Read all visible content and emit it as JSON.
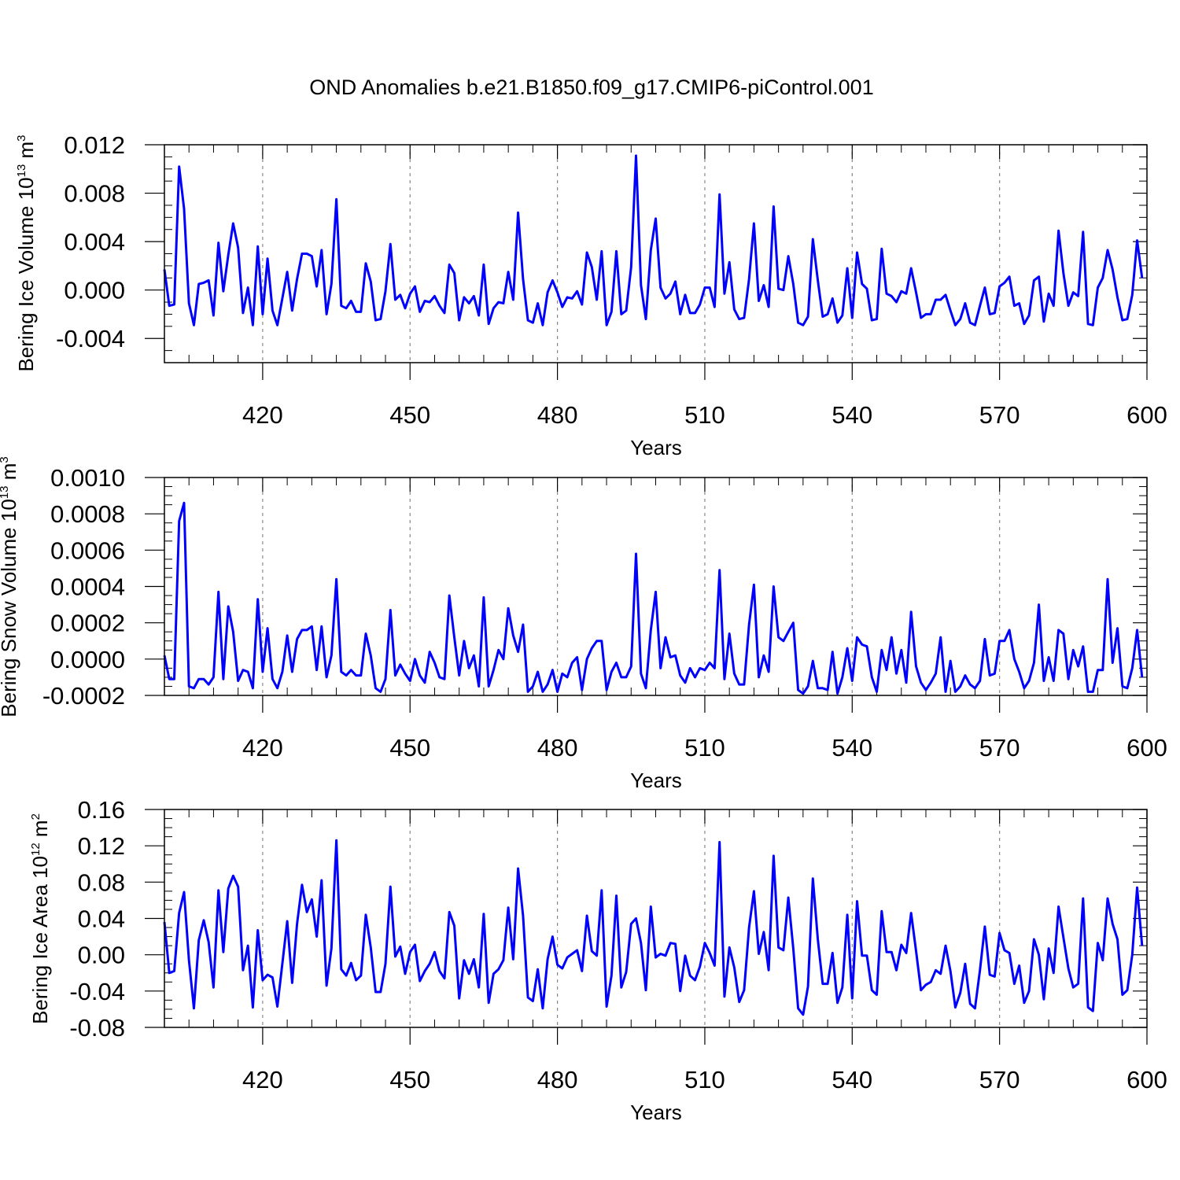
{
  "figure": {
    "title": "OND Anomalies b.e21.B1850.f09_g17.CMIP6-piControl.001",
    "line_color": "#0000ff",
    "grid_color": "#888888"
  },
  "chart_data": [
    {
      "type": "line",
      "name": "bering-ice-volume",
      "title": "",
      "xlabel": "Years",
      "ylabel": {
        "text": "Bering Ice Volume 10",
        "exp": "13",
        "unit": " m",
        "unit_exp": "3"
      },
      "xlim": [
        400,
        600
      ],
      "ylim": [
        -0.006,
        0.012
      ],
      "xticks": [
        420,
        450,
        480,
        510,
        540,
        570,
        600
      ],
      "yticks": [
        -0.004,
        0.0,
        0.004,
        0.008,
        0.012
      ],
      "ytick_labels": [
        "-0.004",
        "0.000",
        "0.004",
        "0.008",
        "0.012"
      ],
      "minor_yticks": [
        -0.005,
        -0.003,
        -0.002,
        -0.001,
        0.001,
        0.002,
        0.003,
        0.005,
        0.006,
        0.007,
        0.009,
        0.01,
        0.011
      ],
      "vgrid": [
        420,
        450,
        480,
        510,
        540,
        570
      ],
      "x_start": 400,
      "series": [
        {
          "name": "Bering Ice Volume",
          "values": [
            0.0017,
            -0.0013,
            -0.0012,
            0.0102,
            0.0067,
            -0.0011,
            -0.0029,
            0.0005,
            0.0006,
            0.0008,
            -0.0021,
            0.0039,
            -0.0001,
            0.0029,
            0.0055,
            0.0035,
            -0.0019,
            0.0002,
            -0.0029,
            0.0036,
            -0.002,
            0.0026,
            -0.0017,
            -0.0029,
            -0.0007,
            0.0015,
            -0.0017,
            0.0009,
            0.003,
            0.003,
            0.0028,
            0.0003,
            0.0033,
            -0.002,
            0.0005,
            0.0075,
            -0.0013,
            -0.0015,
            -0.0009,
            -0.0018,
            -0.0018,
            0.0022,
            0.0007,
            -0.0025,
            -0.0024,
            -0.0001,
            0.0038,
            -0.0008,
            -0.0004,
            -0.0015,
            -0.0003,
            0.0003,
            -0.0018,
            -0.0009,
            -0.001,
            -0.0005,
            -0.0013,
            -0.0019,
            0.0021,
            0.0014,
            -0.0025,
            -0.0006,
            -0.0011,
            -0.0005,
            -0.0021,
            0.0021,
            -0.0028,
            -0.0015,
            -0.001,
            -0.0011,
            0.0015,
            -0.0008,
            0.0064,
            0.0009,
            -0.0025,
            -0.0027,
            -0.0011,
            -0.0029,
            -0.0002,
            0.0008,
            -0.0002,
            -0.0014,
            -0.0006,
            -0.0007,
            -0.0001,
            -0.0012,
            0.0031,
            0.0019,
            -0.0008,
            0.0032,
            -0.0029,
            -0.0018,
            0.0032,
            -0.002,
            -0.0017,
            0.0019,
            0.0111,
            0.0004,
            -0.0024,
            0.0033,
            0.0059,
            0.0002,
            -0.0007,
            -0.0003,
            0.0007,
            -0.002,
            -0.0004,
            -0.0019,
            -0.0019,
            -0.0012,
            0.0002,
            0.0002,
            -0.0014,
            0.0079,
            -0.0003,
            0.0023,
            -0.0016,
            -0.0024,
            -0.0023,
            0.0009,
            0.0055,
            -0.0009,
            0.0004,
            -0.0014,
            0.0069,
            0.0001,
            0.0,
            0.0028,
            0.0005,
            -0.0027,
            -0.0029,
            -0.0022,
            0.0042,
            0.0008,
            -0.0022,
            -0.002,
            -0.0007,
            -0.0027,
            -0.0021,
            0.0018,
            -0.0023,
            0.0031,
            0.0005,
            0.0001,
            -0.0025,
            -0.0024,
            0.0034,
            -0.0003,
            -0.0005,
            -0.001,
            -0.0001,
            -0.0003,
            0.0018,
            -0.0002,
            -0.0023,
            -0.002,
            -0.002,
            -0.0008,
            -0.0008,
            -0.0004,
            -0.0017,
            -0.0029,
            -0.0024,
            -0.0011,
            -0.0027,
            -0.0029,
            -0.0013,
            0.0002,
            -0.002,
            -0.0019,
            0.0003,
            0.0006,
            0.0011,
            -0.0013,
            -0.0011,
            -0.0028,
            -0.0021,
            0.0008,
            0.0011,
            -0.0026,
            -0.0003,
            -0.0013,
            0.0049,
            0.0014,
            -0.0013,
            -0.0002,
            -0.0005,
            0.0048,
            -0.0028,
            -0.0029,
            0.0002,
            0.001,
            0.0033,
            0.0017,
            -0.0006,
            -0.0025,
            -0.0024,
            -0.0004,
            0.0041,
            0.001
          ]
        }
      ]
    },
    {
      "type": "line",
      "name": "bering-snow-volume",
      "title": "",
      "xlabel": "Years",
      "ylabel": {
        "text": "Bering Snow Volume 10",
        "exp": "13",
        "unit": " m",
        "unit_exp": "3"
      },
      "xlim": [
        400,
        600
      ],
      "ylim": [
        -0.0002,
        0.001
      ],
      "xticks": [
        420,
        450,
        480,
        510,
        540,
        570,
        600
      ],
      "yticks": [
        -0.0002,
        0.0,
        0.0002,
        0.0004,
        0.0006,
        0.0008,
        0.001
      ],
      "ytick_labels": [
        "-0.0002",
        "0.0000",
        "0.0002",
        "0.0004",
        "0.0006",
        "0.0008",
        "0.0010"
      ],
      "minor_yticks": [
        -0.00015,
        -0.0001,
        -5e-05,
        5e-05,
        0.0001,
        0.00015,
        0.00025,
        0.0003,
        0.00035,
        0.00045,
        0.0005,
        0.00055,
        0.00065,
        0.0007,
        0.00075,
        0.00085,
        0.0009,
        0.00095
      ],
      "vgrid": [
        420,
        450,
        480,
        510,
        540,
        570
      ],
      "x_start": 400,
      "series": [
        {
          "name": "Bering Snow Volume",
          "values": [
            2e-05,
            -0.00011,
            -0.00011,
            0.00076,
            0.00086,
            -0.00015,
            -0.00016,
            -0.00011,
            -0.00011,
            -0.00014,
            -0.0001,
            0.00037,
            -0.00011,
            0.00029,
            0.00015,
            -0.00012,
            -6e-05,
            -7e-05,
            -0.00016,
            0.00033,
            -7e-05,
            0.00017,
            -0.00011,
            -0.00016,
            -7e-05,
            0.00013,
            -7e-05,
            0.00011,
            0.00016,
            0.00016,
            0.00018,
            -6e-05,
            0.00018,
            -0.0001,
            2e-05,
            0.00044,
            -7e-05,
            -9e-05,
            -6e-05,
            -9e-05,
            -9e-05,
            0.00014,
            2e-05,
            -0.00016,
            -0.00018,
            -0.00011,
            0.00027,
            -9e-05,
            -3e-05,
            -8e-05,
            -0.00012,
            0.0,
            -9e-05,
            -0.00013,
            4e-05,
            -2e-05,
            -0.0001,
            -0.00011,
            0.00035,
            0.00012,
            -9e-05,
            0.0001,
            -5e-05,
            2e-05,
            -0.00015,
            0.00034,
            -0.00015,
            -6e-05,
            5e-05,
            0.0,
            0.00028,
            0.00013,
            4e-05,
            0.00019,
            -0.00018,
            -0.00015,
            -7e-05,
            -0.00018,
            -0.00014,
            -6e-05,
            -0.00018,
            -8e-05,
            -0.0001,
            -2e-05,
            1e-05,
            -0.00017,
            0.0,
            6e-05,
            0.0001,
            0.0001,
            -0.00017,
            -7e-05,
            -2e-05,
            -0.0001,
            -0.0001,
            -4e-05,
            0.00058,
            -8e-05,
            -0.00016,
            0.00016,
            0.00037,
            -5e-05,
            0.00012,
            1e-05,
            2e-05,
            -9e-05,
            -0.00013,
            -5e-05,
            -0.0001,
            -5e-05,
            -6e-05,
            -2e-05,
            -5e-05,
            0.00049,
            -0.00011,
            0.00014,
            -8e-05,
            -0.00014,
            -0.00014,
            0.00019,
            0.00041,
            -0.0001,
            2e-05,
            -7e-05,
            0.0004,
            0.00012,
            0.0001,
            0.00015,
            0.0002,
            -0.00017,
            -0.00019,
            -0.00015,
            -1e-05,
            -0.00016,
            -0.00016,
            -0.00017,
            4e-05,
            -0.00019,
            -0.0001,
            6e-05,
            -0.00012,
            0.00012,
            8e-05,
            7e-05,
            -0.0001,
            -0.00018,
            5e-05,
            -6e-05,
            0.00012,
            -8e-05,
            5e-05,
            -0.00013,
            0.00026,
            -4e-05,
            -0.00013,
            -0.00017,
            -0.00013,
            -8e-05,
            0.00012,
            -0.00018,
            -1e-05,
            -0.00018,
            -0.00015,
            -9e-05,
            -0.00014,
            -0.00016,
            -0.00012,
            0.00011,
            -9e-05,
            -8e-05,
            0.0001,
            0.0001,
            0.00016,
            0.0,
            -7e-05,
            -0.00016,
            -0.00012,
            -2e-05,
            0.0003,
            -0.00012,
            1e-05,
            -0.00012,
            0.00016,
            0.00014,
            -0.00011,
            5e-05,
            -4e-05,
            7e-05,
            -0.00018,
            -0.00018,
            -6e-05,
            -6e-05,
            0.00044,
            -2e-05,
            0.00017,
            -0.00015,
            -0.00016,
            -5e-05,
            0.00016,
            -0.0001
          ]
        }
      ]
    },
    {
      "type": "line",
      "name": "bering-ice-area",
      "title": "",
      "xlabel": "Years",
      "ylabel": {
        "text": "Bering Ice Area 10",
        "exp": "12",
        "unit": " m",
        "unit_exp": "2"
      },
      "xlim": [
        400,
        600
      ],
      "ylim": [
        -0.08,
        0.16
      ],
      "xticks": [
        420,
        450,
        480,
        510,
        540,
        570,
        600
      ],
      "yticks": [
        -0.08,
        -0.04,
        0.0,
        0.04,
        0.08,
        0.12,
        0.16
      ],
      "ytick_labels": [
        "-0.08",
        "-0.04",
        "0.00",
        "0.04",
        "0.08",
        "0.12",
        "0.16"
      ],
      "minor_yticks": [
        -0.07,
        -0.06,
        -0.05,
        -0.03,
        -0.02,
        -0.01,
        0.01,
        0.02,
        0.03,
        0.05,
        0.06,
        0.07,
        0.09,
        0.1,
        0.11,
        0.13,
        0.14,
        0.15
      ],
      "vgrid": [
        420,
        450,
        480,
        510,
        540,
        570
      ],
      "x_start": 400,
      "series": [
        {
          "name": "Bering Ice Area",
          "values": [
            0.036,
            -0.02,
            -0.018,
            0.046,
            0.069,
            -0.006,
            -0.059,
            0.016,
            0.038,
            0.014,
            -0.036,
            0.071,
            0.003,
            0.073,
            0.087,
            0.075,
            -0.017,
            0.01,
            -0.058,
            0.027,
            -0.028,
            -0.022,
            -0.025,
            -0.057,
            -0.01,
            0.037,
            -0.031,
            0.034,
            0.077,
            0.047,
            0.061,
            0.02,
            0.082,
            -0.034,
            0.007,
            0.126,
            -0.016,
            -0.023,
            -0.009,
            -0.028,
            -0.023,
            0.044,
            0.008,
            -0.041,
            -0.041,
            -0.01,
            0.075,
            -0.002,
            0.009,
            -0.021,
            0.003,
            0.011,
            -0.029,
            -0.018,
            -0.01,
            0.003,
            -0.018,
            -0.026,
            0.047,
            0.032,
            -0.048,
            -0.006,
            -0.021,
            -0.005,
            -0.036,
            0.045,
            -0.053,
            -0.021,
            -0.016,
            -0.006,
            0.052,
            -0.005,
            0.095,
            0.043,
            -0.047,
            -0.051,
            -0.016,
            -0.059,
            -0.005,
            0.02,
            -0.011,
            -0.015,
            -0.003,
            0.001,
            0.005,
            -0.018,
            0.043,
            0.004,
            -0.001,
            0.071,
            -0.057,
            -0.023,
            0.065,
            -0.036,
            -0.019,
            0.034,
            0.04,
            0.013,
            -0.039,
            0.053,
            -0.003,
            0.001,
            -0.001,
            0.013,
            0.012,
            -0.04,
            -0.001,
            -0.023,
            -0.028,
            -0.013,
            0.013,
            0.002,
            -0.012,
            0.124,
            -0.046,
            0.008,
            -0.014,
            -0.052,
            -0.039,
            0.03,
            0.07,
            0.001,
            0.025,
            -0.017,
            0.109,
            0.008,
            0.005,
            0.063,
            0.007,
            -0.059,
            -0.066,
            -0.035,
            0.084,
            0.017,
            -0.032,
            -0.032,
            0.002,
            -0.053,
            -0.036,
            0.044,
            -0.048,
            0.059,
            -0.001,
            -0.001,
            -0.039,
            -0.044,
            0.048,
            0.003,
            0.003,
            -0.017,
            0.011,
            0.002,
            0.046,
            0.004,
            -0.039,
            -0.033,
            -0.03,
            -0.017,
            -0.021,
            0.01,
            -0.018,
            -0.058,
            -0.042,
            -0.01,
            -0.054,
            -0.059,
            -0.017,
            0.031,
            -0.022,
            -0.024,
            0.024,
            0.005,
            0.002,
            -0.032,
            -0.012,
            -0.053,
            -0.04,
            0.017,
            0.0,
            -0.049,
            0.007,
            -0.02,
            0.053,
            0.019,
            -0.015,
            -0.036,
            -0.032,
            0.062,
            -0.058,
            -0.062,
            0.013,
            -0.006,
            0.062,
            0.034,
            0.017,
            -0.044,
            -0.039,
            0.0,
            0.074,
            0.01
          ]
        }
      ]
    }
  ]
}
